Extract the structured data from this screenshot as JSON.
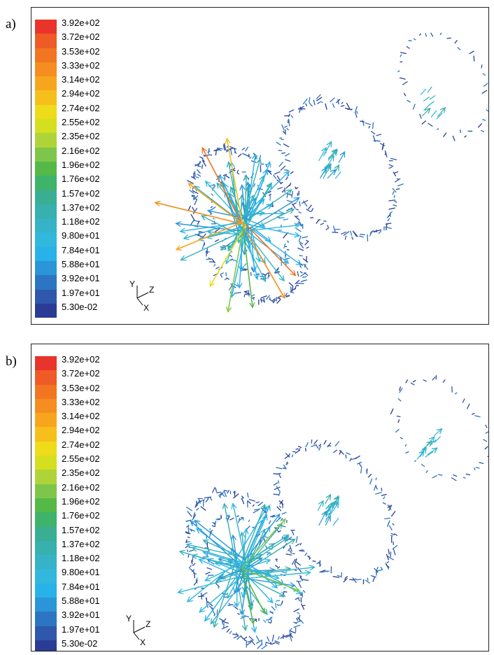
{
  "panels": [
    {
      "label": "a)",
      "axis_labels": {
        "y": "Y",
        "z": "Z",
        "x": "X"
      },
      "colorbar_ticks": [
        "3.92e+02",
        "3.72e+02",
        "3.53e+02",
        "3.33e+02",
        "3.14e+02",
        "2.94e+02",
        "2.74e+02",
        "2.55e+02",
        "2.35e+02",
        "2.16e+02",
        "1.96e+02",
        "1.76e+02",
        "1.57e+02",
        "1.37e+02",
        "1.18e+02",
        "9.80e+01",
        "7.84e+01",
        "5.88e+01",
        "3.92e+01",
        "1.97e+01",
        "5.30e-02"
      ]
    },
    {
      "label": "b)",
      "axis_labels": {
        "y": "Y",
        "z": "Z",
        "x": "X"
      },
      "colorbar_ticks": [
        "3.92e+02",
        "3.72e+02",
        "3.53e+02",
        "3.33e+02",
        "3.14e+02",
        "2.94e+02",
        "2.74e+02",
        "2.55e+02",
        "2.35e+02",
        "2.16e+02",
        "1.96e+02",
        "1.76e+02",
        "1.57e+02",
        "1.37e+02",
        "1.18e+02",
        "9.80e+01",
        "7.84e+01",
        "5.88e+01",
        "3.92e+01",
        "1.97e+01",
        "5.30e-02"
      ]
    }
  ],
  "colormap": [
    "#e8342a",
    "#ee5b26",
    "#f27522",
    "#f58d20",
    "#f8a51e",
    "#f6bf1c",
    "#eedb1a",
    "#d4df1f",
    "#aed43a",
    "#7ec64a",
    "#55b948",
    "#3fb36a",
    "#3aae92",
    "#37b0ae",
    "#36b3c6",
    "#31b8dc",
    "#28b2e9",
    "#2a95d8",
    "#2c75c2",
    "#2f57ab",
    "#2b3c94"
  ]
}
